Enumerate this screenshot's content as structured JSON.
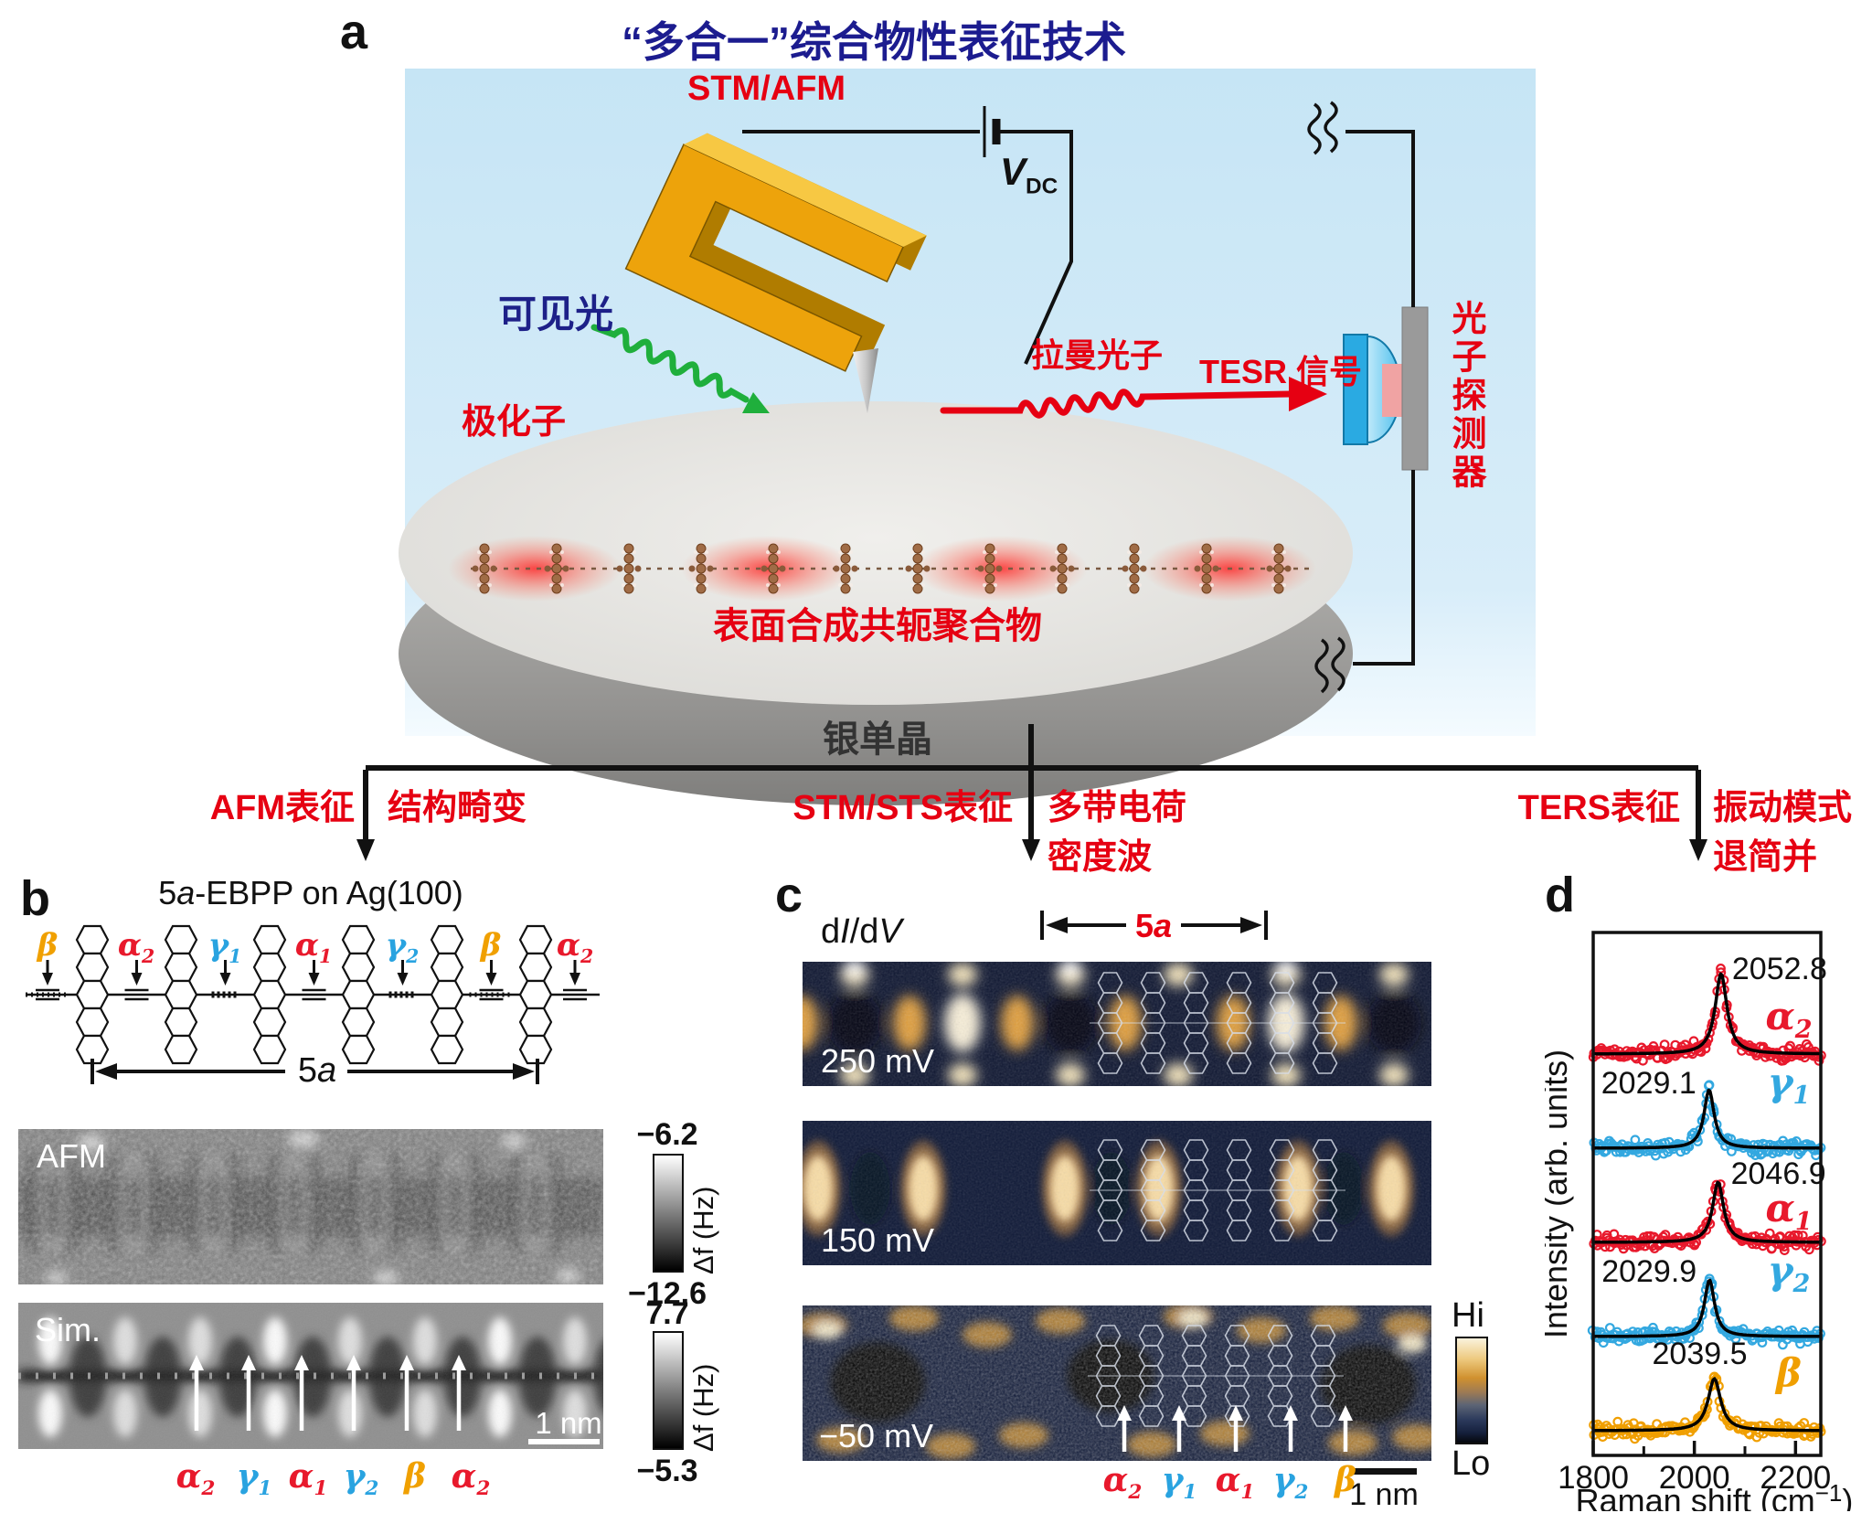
{
  "colors": {
    "accent_red": "#e60012",
    "title_navy": "#1c1c8f",
    "label_navy": "#1d2088",
    "scatter_red": "#e8192c",
    "scatter_blue": "#33a8e0",
    "scatter_orange": "#f09f00",
    "beta_orange": "#f0a000",
    "gamma_blue": "#29a3e0",
    "alpha_red": "#e8192c"
  },
  "panel_a": {
    "label": "a",
    "title": "“多合一”综合物性表征技术",
    "stm_afm": "STM/AFM",
    "bias_main": "V",
    "bias_sub": "DC",
    "visible_light": "可见光",
    "polaron": "极化子",
    "raman_photon": "拉曼光子",
    "tesr_signal": "TESR 信号",
    "photon_detector": "光子探测器",
    "polymer": "表面合成共轭聚合物",
    "silver_crystal": "银单晶",
    "branches": [
      {
        "method": "AFM表征",
        "result_line1": "结构畸变",
        "result_line2": ""
      },
      {
        "method": "STM/STS表征",
        "result_line1": "多带电荷",
        "result_line2": "密度波"
      },
      {
        "method": "TERS表征",
        "result_line1": "振动模式",
        "result_line2": "退简并"
      }
    ]
  },
  "panel_b": {
    "label": "b",
    "title_num": "5",
    "title_italic": "a",
    "title_rest": "-EBPP on Ag(100)",
    "bond_labels": [
      {
        "letter": "β",
        "sub": "",
        "color": "#f0a000"
      },
      {
        "letter": "α",
        "sub": "2",
        "color": "#e8192c"
      },
      {
        "letter": "γ",
        "sub": "1",
        "color": "#29a3e0"
      },
      {
        "letter": "α",
        "sub": "1",
        "color": "#e8192c"
      },
      {
        "letter": "γ",
        "sub": "2",
        "color": "#29a3e0"
      },
      {
        "letter": "β",
        "sub": "",
        "color": "#f0a000"
      },
      {
        "letter": "α",
        "sub": "2",
        "color": "#e8192c"
      }
    ],
    "span_num": "5",
    "span_italic": "a",
    "afm_label": "AFM",
    "sim_label": "Sim.",
    "afm_scale_top": "−6.2",
    "afm_scale_bottom": "−12.6",
    "afm_scale_unit": "Δf (Hz)",
    "sim_scale_top": "7.7",
    "sim_scale_bottom": "−5.3",
    "sim_scale_unit": "Δf (Hz)",
    "scale_bar": "1 nm",
    "mode_labels": [
      {
        "letter": "α",
        "sub": "2",
        "color": "#e8192c"
      },
      {
        "letter": "γ",
        "sub": "1",
        "color": "#29a3e0"
      },
      {
        "letter": "α",
        "sub": "1",
        "color": "#e8192c"
      },
      {
        "letter": "γ",
        "sub": "2",
        "color": "#29a3e0"
      },
      {
        "letter": "β",
        "sub": "",
        "color": "#f0a000"
      },
      {
        "letter": "α",
        "sub": "2",
        "color": "#e8192c"
      }
    ]
  },
  "panel_c": {
    "label": "c",
    "map_d1": "d",
    "map_I": "I",
    "map_d2": "/d",
    "map_V": "V",
    "span_num": "5",
    "span_italic": "a",
    "bias_labels": [
      "250 mV",
      "150 mV",
      "−50 mV"
    ],
    "colorbar_hi": "Hi",
    "colorbar_lo": "Lo",
    "scale_bar": "1 nm",
    "mode_labels": [
      {
        "letter": "α",
        "sub": "2",
        "color": "#e8192c"
      },
      {
        "letter": "γ",
        "sub": "1",
        "color": "#29a3e0"
      },
      {
        "letter": "α",
        "sub": "1",
        "color": "#e8192c"
      },
      {
        "letter": "γ",
        "sub": "2",
        "color": "#29a3e0"
      },
      {
        "letter": "β",
        "sub": "",
        "color": "#f0a000"
      }
    ]
  },
  "panel_d": {
    "label": "d"
  },
  "chart_data": {
    "type": "scatter+line",
    "title": "",
    "xlabel_parts": [
      "Raman shift (cm",
      "−1",
      ")"
    ],
    "ylabel": "Intensity (arb. units)",
    "xlim": [
      1800,
      2250
    ],
    "xticks": [
      1800,
      2000,
      2200
    ],
    "xticks_minor": [
      1900,
      2100
    ],
    "grid": false,
    "legend": "series labels inline at right",
    "series": [
      {
        "name_letter": "α",
        "name_sub": "2",
        "peak_cm1": 2052.8,
        "peak_label": "2052.8",
        "color": "#e8192c"
      },
      {
        "name_letter": "γ",
        "name_sub": "1",
        "peak_cm1": 2029.1,
        "peak_label": "2029.1",
        "color": "#33a8e0"
      },
      {
        "name_letter": "α",
        "name_sub": "1",
        "peak_cm1": 2046.9,
        "peak_label": "2046.9",
        "color": "#e8192c"
      },
      {
        "name_letter": "γ",
        "name_sub": "2",
        "peak_cm1": 2029.9,
        "peak_label": "2029.9",
        "color": "#33a8e0"
      },
      {
        "name_letter": "β",
        "name_sub": "",
        "peak_cm1": 2039.5,
        "peak_label": "2039.5",
        "color": "#f0f9f00"
      }
    ]
  }
}
